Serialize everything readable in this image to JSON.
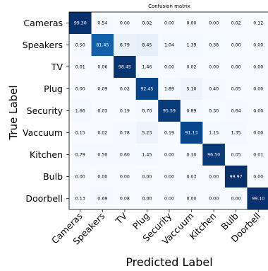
{
  "chart_data": {
    "type": "heatmap",
    "title": "Confusion matrix",
    "xlabel": "Predicted Label",
    "ylabel": "True Label",
    "rows": [
      "Cameras",
      "Speakers",
      "TV",
      "Plug",
      "Security",
      "Vaccuum",
      "Kitchen",
      "Bulb",
      "Doorbell"
    ],
    "cols": [
      "Cameras",
      "Speakers",
      "TV",
      "Plug",
      "Security",
      "Vaccuum",
      "Kitchen",
      "Bulb",
      "Doorbell"
    ],
    "values": [
      [
        "99.30",
        "0.54",
        "0.00",
        "0.02",
        "0.00",
        "0.00",
        "0.00",
        "0.02",
        "0.12"
      ],
      [
        "0.50",
        "81.45",
        "6.79",
        "8.45",
        "1.04",
        "1.39",
        "0.38",
        "0.00",
        "0.00"
      ],
      [
        "0.01",
        "0.06",
        "98.45",
        "1.46",
        "0.00",
        "0.02",
        "0.00",
        "0.00",
        "0.00"
      ],
      [
        "0.00",
        "0.09",
        "0.02",
        "92.45",
        "1.89",
        "5.10",
        "0.40",
        "0.05",
        "0.00"
      ],
      [
        "1.66",
        "0.03",
        "0.19",
        "0.70",
        "95.59",
        "0.89",
        "0.30",
        "0.64",
        "0.00"
      ],
      [
        "0.15",
        "0.02",
        "0.78",
        "5.23",
        "0.19",
        "91.13",
        "1.15",
        "1.35",
        "0.00"
      ],
      [
        "0.79",
        "0.50",
        "0.60",
        "1.45",
        "0.00",
        "0.10",
        "96.50",
        "0.05",
        "0.01"
      ],
      [
        "0.00",
        "0.00",
        "0.00",
        "0.00",
        "0.00",
        "0.03",
        "0.00",
        "99.97",
        "0.00"
      ],
      [
        "0.13",
        "0.69",
        "0.08",
        "0.00",
        "0.00",
        "0.00",
        "0.00",
        "0.00",
        "99.10"
      ]
    ],
    "colormap": [
      "#f7fbff",
      "#deebf7",
      "#c6dbef",
      "#9ecae1",
      "#6baed6",
      "#4292c6",
      "#2171b5",
      "#08519c",
      "#08306b"
    ],
    "value_range": [
      0,
      100
    ],
    "text_colors": {
      "light": "#ffffff",
      "dark": "#000000"
    }
  }
}
